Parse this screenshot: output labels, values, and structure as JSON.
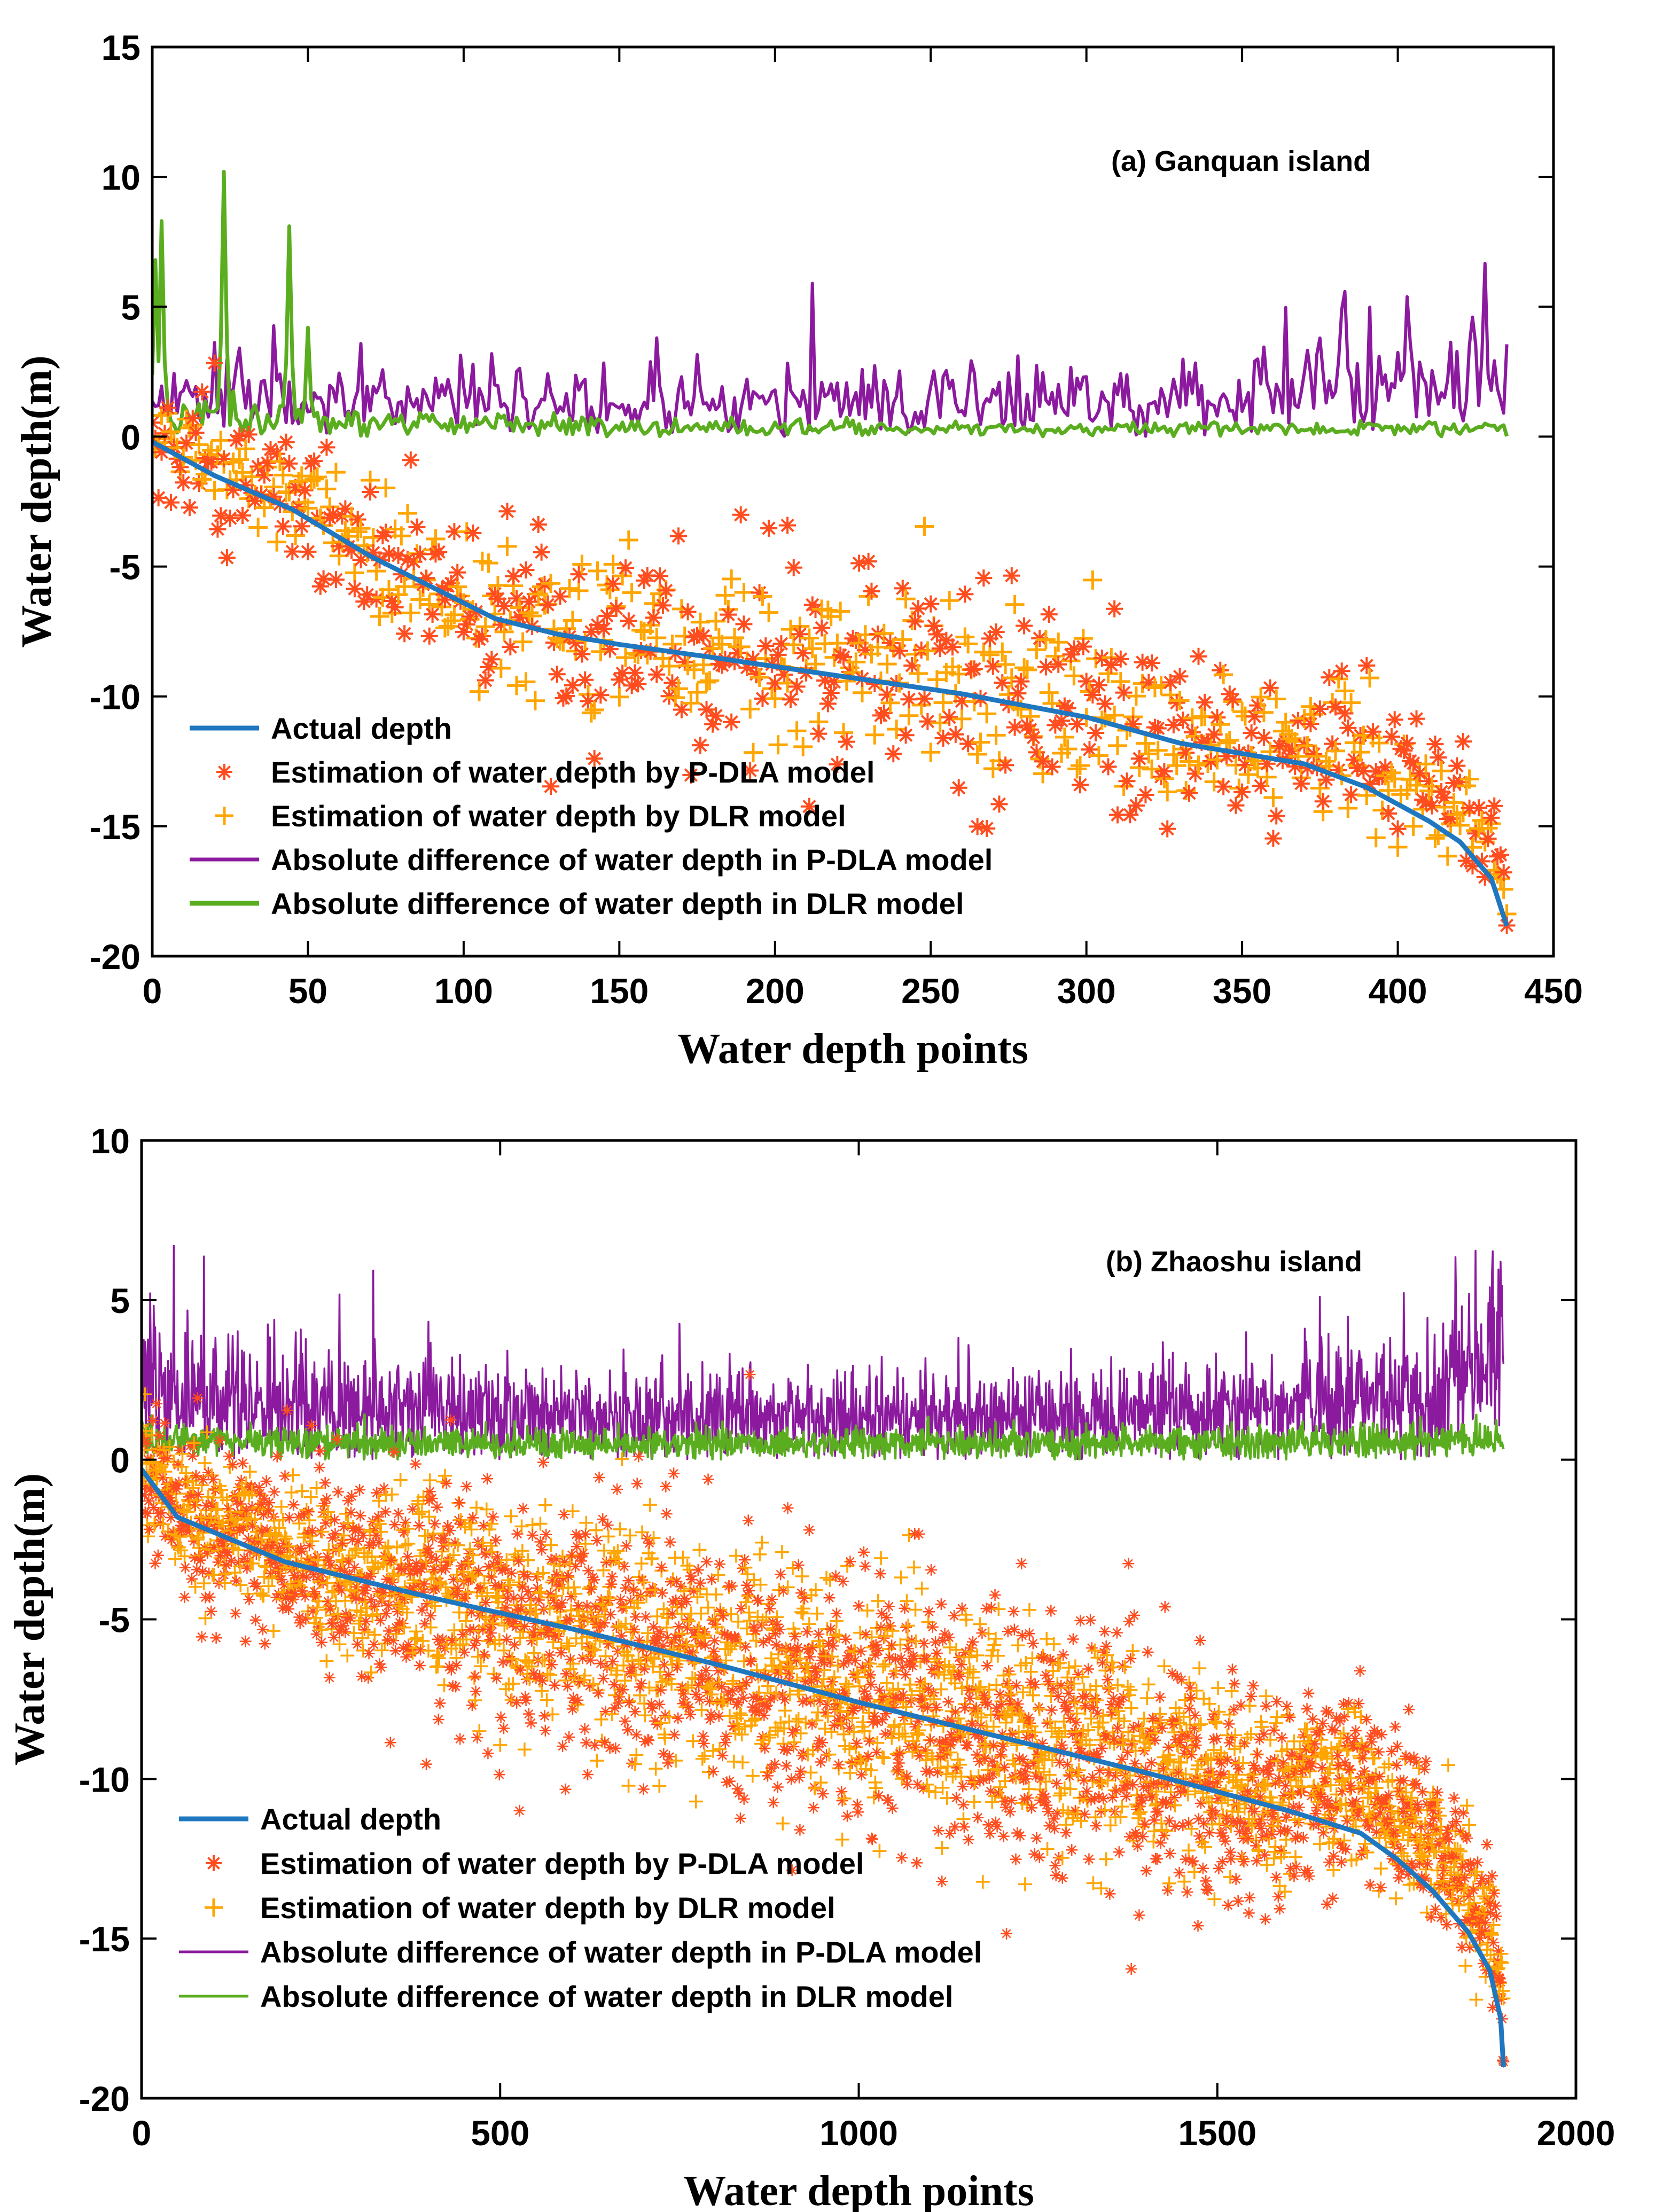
{
  "chart_data": [
    {
      "type": "line",
      "title": "(a) Ganquan island",
      "xlabel": "Water depth points",
      "ylabel": "Water depth(m)",
      "xlim": [
        0,
        450
      ],
      "ylim": [
        -20,
        15
      ],
      "xticks": [
        0,
        50,
        100,
        150,
        200,
        250,
        300,
        350,
        400,
        450
      ],
      "yticks": [
        15,
        10,
        5,
        0,
        -5,
        -10,
        -15,
        -20
      ],
      "n_points": 436,
      "legend_position": "bottom-left",
      "colors": {
        "actual": "#1f77c0",
        "pdla_est": "#ff4d1f",
        "dlr_est": "#ffa500",
        "pdla_diff": "#8b1a9e",
        "dlr_diff": "#5aad1f"
      },
      "actual_depth_profile": {
        "x": [
          0,
          20,
          45,
          70,
          90,
          110,
          130,
          150,
          180,
          220,
          260,
          300,
          330,
          350,
          370,
          390,
          410,
          420,
          430,
          436
        ],
        "y": [
          -0.2,
          -1.5,
          -2.8,
          -4.6,
          -5.8,
          -7.0,
          -7.6,
          -8.0,
          -8.5,
          -9.2,
          -9.9,
          -10.8,
          -11.8,
          -12.2,
          -12.6,
          -13.5,
          -14.8,
          -15.6,
          -17.0,
          -19.2
        ]
      },
      "pdla_abs_diff_level": {
        "x": [
          0,
          50,
          100,
          150,
          200,
          250,
          300,
          350,
          400,
          436
        ],
        "y": [
          1.6,
          1.4,
          1.5,
          1.2,
          1.3,
          1.3,
          1.4,
          1.5,
          2.0,
          2.3
        ]
      },
      "dlr_abs_diff_level": {
        "x": [
          0,
          50,
          100,
          150,
          200,
          250,
          300,
          350,
          400,
          436
        ],
        "y": [
          0.9,
          0.6,
          0.5,
          0.4,
          0.4,
          0.3,
          0.3,
          0.3,
          0.3,
          0.4
        ]
      },
      "spikes_pdla": [
        {
          "x": 212,
          "y": 5.9
        },
        {
          "x": 162,
          "y": 3.8
        },
        {
          "x": 424,
          "y": 4.6
        },
        {
          "x": 436,
          "y": 3.3
        }
      ],
      "spikes_dlr": [
        {
          "x": 1,
          "y": 6.8
        },
        {
          "x": 3,
          "y": 8.3
        },
        {
          "x": 23,
          "y": 10.2
        },
        {
          "x": 44,
          "y": 8.1
        },
        {
          "x": 50,
          "y": 4.2
        }
      ],
      "series_names": [
        "Actual depth",
        "Estimation of water depth by P-DLA model",
        "Estimation of water depth by DLR model",
        "Absolute difference of water depth in P-DLA model",
        "Absolute difference of water depth in DLR model"
      ]
    },
    {
      "type": "line",
      "title": "(b) Zhaoshu island",
      "xlabel": "Water depth points",
      "ylabel": "Water depth(m)",
      "xlim": [
        0,
        2000
      ],
      "ylim": [
        -20,
        10
      ],
      "xticks": [
        0,
        500,
        1000,
        1500,
        2000
      ],
      "yticks": [
        10,
        5,
        0,
        -5,
        -10,
        -15,
        -20
      ],
      "n_points": 1900,
      "legend_position": "bottom-left",
      "colors": {
        "actual": "#1f77c0",
        "pdla_est": "#ff4d1f",
        "dlr_est": "#ffa500",
        "pdla_diff": "#8b1a9e",
        "dlr_diff": "#5aad1f"
      },
      "actual_depth_profile": {
        "x": [
          0,
          50,
          200,
          400,
          500,
          600,
          800,
          1000,
          1200,
          1400,
          1500,
          1600,
          1700,
          1750,
          1800,
          1850,
          1880,
          1895,
          1900
        ],
        "y": [
          -0.3,
          -1.8,
          -3.2,
          -4.3,
          -4.8,
          -5.3,
          -6.4,
          -7.6,
          -8.7,
          -9.8,
          -10.4,
          -11.0,
          -11.7,
          -12.5,
          -13.5,
          -14.8,
          -16.0,
          -17.5,
          -19.4
        ]
      },
      "pdla_abs_diff_level": {
        "x": [
          0,
          200,
          400,
          600,
          800,
          1000,
          1200,
          1400,
          1600,
          1800,
          1900
        ],
        "y": [
          2.0,
          1.7,
          1.5,
          1.4,
          1.3,
          1.2,
          1.3,
          1.4,
          1.6,
          2.0,
          2.8
        ]
      },
      "dlr_abs_diff_level": {
        "x": [
          0,
          500,
          1000,
          1500,
          1900
        ],
        "y": [
          0.6,
          0.5,
          0.5,
          0.5,
          0.6
        ]
      },
      "spikes_pdla": [
        {
          "x": 45,
          "y": 6.7
        },
        {
          "x": 1895,
          "y": 6.2
        },
        {
          "x": 1880,
          "y": 5.4
        }
      ],
      "spikes_dlr": [],
      "series_names": [
        "Actual depth",
        "Estimation of water depth by P-DLA model",
        "Estimation of water depth by DLR model",
        "Absolute difference of water depth in P-DLA model",
        "Absolute difference of water depth in DLR model"
      ]
    }
  ]
}
